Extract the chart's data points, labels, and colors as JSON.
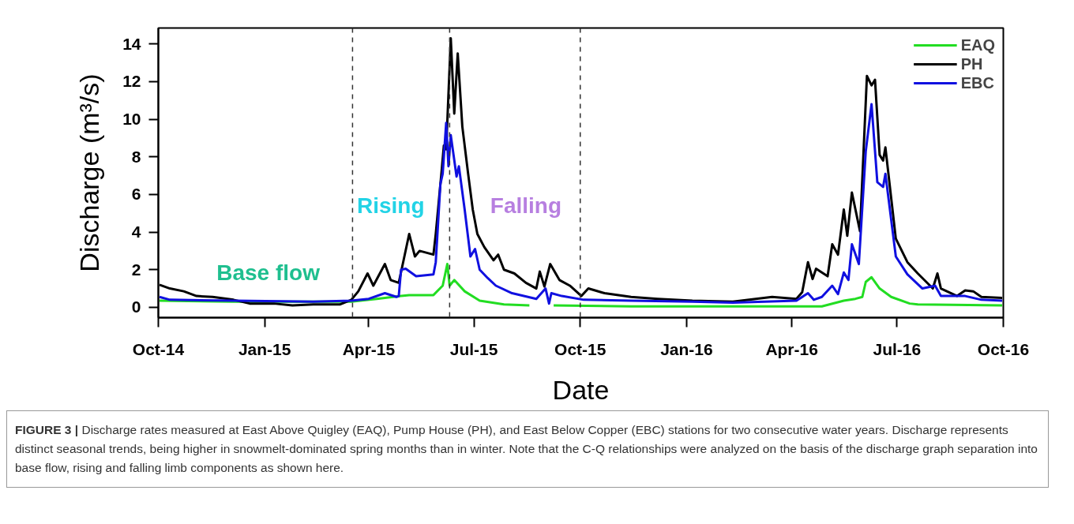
{
  "chart_data": {
    "type": "line",
    "xlabel": "Date",
    "ylabel": "Discharge (m³/s)",
    "xlim": [
      "2014-10-01",
      "2016-10-01"
    ],
    "xticks": [
      {
        "value": "2014-10-01",
        "label": "Oct-14"
      },
      {
        "value": "2015-01-01",
        "label": "Jan-15"
      },
      {
        "value": "2015-04-01",
        "label": "Apr-15"
      },
      {
        "value": "2015-07-01",
        "label": "Jul-15"
      },
      {
        "value": "2015-10-01",
        "label": "Oct-15"
      },
      {
        "value": "2016-01-01",
        "label": "Jan-16"
      },
      {
        "value": "2016-04-01",
        "label": "Apr-16"
      },
      {
        "value": "2016-07-01",
        "label": "Jul-16"
      },
      {
        "value": "2016-10-01",
        "label": "Oct-16"
      }
    ],
    "ylim": [
      -0.55,
      14.85
    ],
    "yticks": [
      0,
      2,
      4,
      6,
      8,
      10,
      12,
      14
    ],
    "grid": false,
    "legend": "top right",
    "marker": "none",
    "line_style": "solid",
    "series": [
      {
        "name": "EAQ",
        "color": "#22dd22",
        "x": [
          "2014-10-02",
          "2014-12-05",
          "2015-03-17",
          "2015-04-08",
          "2015-05-06",
          "2015-05-27",
          "2015-06-04",
          "2015-06-08",
          "2015-06-10",
          "2015-06-14",
          "2015-06-23",
          "2015-07-06",
          "2015-07-27",
          "2015-08-18",
          "2015-08-30",
          "2015-09-08",
          "2015-11-14",
          "2016-01-27",
          "2016-04-01",
          "2016-04-27",
          "2016-05-16",
          "2016-05-26",
          "2016-06-01",
          "2016-06-04",
          "2016-06-09",
          "2016-06-16",
          "2016-06-26",
          "2016-07-12",
          "2016-07-19",
          "2016-09-30"
        ],
        "values": [
          0.35,
          0.3,
          0.3,
          0.45,
          0.65,
          0.65,
          1.15,
          2.3,
          1.15,
          1.45,
          0.85,
          0.35,
          0.15,
          0.1,
          null,
          0.1,
          0.05,
          0.05,
          0.05,
          0.05,
          0.35,
          0.45,
          0.55,
          1.35,
          1.6,
          1.0,
          0.55,
          0.2,
          0.15,
          0.1
        ]
      },
      {
        "name": "PH",
        "color": "#000000",
        "x": [
          "2014-10-02",
          "2014-10-11",
          "2014-10-23",
          "2014-11-03",
          "2014-11-17",
          "2014-12-05",
          "2014-12-19",
          "2015-01-09",
          "2015-01-25",
          "2015-02-12",
          "2015-03-07",
          "2015-03-17",
          "2015-03-23",
          "2015-03-31",
          "2015-04-05",
          "2015-04-15",
          "2015-04-20",
          "2015-04-27",
          "2015-05-06",
          "2015-05-11",
          "2015-05-15",
          "2015-05-27",
          "2015-05-29",
          "2015-06-03",
          "2015-06-05",
          "2015-06-07",
          "2015-06-11",
          "2015-06-14",
          "2015-06-17",
          "2015-06-21",
          "2015-06-26",
          "2015-06-30",
          "2015-07-04",
          "2015-07-10",
          "2015-07-18",
          "2015-07-22",
          "2015-07-27",
          "2015-08-05",
          "2015-08-15",
          "2015-08-24",
          "2015-08-27",
          "2015-08-31",
          "2015-09-05",
          "2015-09-13",
          "2015-09-22",
          "2015-10-02",
          "2015-10-08",
          "2015-10-22",
          "2015-11-14",
          "2015-12-07",
          "2016-01-06",
          "2016-02-10",
          "2016-03-15",
          "2016-04-05",
          "2016-04-10",
          "2016-04-15",
          "2016-04-19",
          "2016-04-22",
          "2016-05-02",
          "2016-05-06",
          "2016-05-11",
          "2016-05-16",
          "2016-05-19",
          "2016-05-23",
          "2016-05-30",
          "2016-06-05",
          "2016-06-09",
          "2016-06-12",
          "2016-06-16",
          "2016-06-19",
          "2016-06-21",
          "2016-06-30",
          "2016-07-10",
          "2016-07-19",
          "2016-08-01",
          "2016-08-05",
          "2016-08-08",
          "2016-08-22",
          "2016-08-29",
          "2016-09-05",
          "2016-09-12",
          "2016-09-30"
        ],
        "values": [
          1.2,
          1.0,
          0.85,
          0.6,
          0.55,
          0.4,
          0.2,
          0.2,
          0.1,
          0.15,
          0.15,
          0.4,
          0.85,
          1.8,
          1.15,
          2.3,
          1.45,
          1.3,
          3.9,
          2.7,
          3.0,
          2.8,
          3.9,
          7.2,
          8.6,
          8.4,
          14.3,
          10.3,
          13.5,
          9.6,
          7.1,
          5.2,
          3.9,
          3.2,
          2.5,
          2.8,
          2.0,
          1.8,
          1.3,
          1.0,
          1.9,
          1.1,
          2.3,
          1.45,
          1.15,
          0.6,
          1.0,
          0.75,
          0.55,
          0.45,
          0.35,
          0.3,
          0.55,
          0.45,
          0.8,
          2.4,
          1.5,
          2.05,
          1.65,
          3.35,
          2.8,
          5.2,
          3.8,
          6.1,
          4.05,
          12.3,
          11.8,
          12.1,
          8.1,
          7.8,
          8.5,
          3.65,
          2.4,
          1.8,
          1.0,
          1.8,
          1.0,
          0.6,
          0.9,
          0.85,
          0.55,
          0.5
        ]
      },
      {
        "name": "EBC",
        "color": "#1010e0",
        "x": [
          "2014-10-02",
          "2014-10-11",
          "2014-12-05",
          "2015-02-12",
          "2015-03-17",
          "2015-04-01",
          "2015-04-15",
          "2015-04-25",
          "2015-04-27",
          "2015-04-29",
          "2015-05-03",
          "2015-05-12",
          "2015-05-27",
          "2015-05-29",
          "2015-06-02",
          "2015-06-04",
          "2015-06-07",
          "2015-06-09",
          "2015-06-11",
          "2015-06-16",
          "2015-06-18",
          "2015-06-23",
          "2015-06-28",
          "2015-07-02",
          "2015-07-06",
          "2015-07-13",
          "2015-07-20",
          "2015-08-03",
          "2015-08-24",
          "2015-09-01",
          "2015-09-04",
          "2015-09-06",
          "2015-09-15",
          "2015-10-04",
          "2015-11-14",
          "2016-01-06",
          "2016-02-10",
          "2016-04-05",
          "2016-04-15",
          "2016-04-20",
          "2016-04-27",
          "2016-05-06",
          "2016-05-11",
          "2016-05-16",
          "2016-05-20",
          "2016-05-23",
          "2016-05-29",
          "2016-06-04",
          "2016-06-09",
          "2016-06-14",
          "2016-06-19",
          "2016-06-21",
          "2016-06-30",
          "2016-07-10",
          "2016-07-23",
          "2016-08-03",
          "2016-08-08",
          "2016-08-29",
          "2016-09-12",
          "2016-09-30"
        ],
        "values": [
          0.55,
          0.4,
          0.35,
          0.3,
          0.35,
          0.45,
          0.75,
          0.55,
          0.6,
          2.0,
          2.05,
          1.65,
          1.75,
          2.4,
          6.55,
          7.1,
          9.8,
          7.5,
          9.15,
          6.95,
          7.5,
          5.2,
          2.7,
          3.1,
          2.0,
          1.55,
          1.15,
          0.75,
          0.45,
          1.0,
          0.2,
          0.75,
          0.6,
          0.4,
          0.35,
          0.3,
          0.25,
          0.35,
          0.75,
          0.4,
          0.55,
          1.15,
          0.7,
          1.85,
          1.45,
          3.35,
          2.3,
          8.3,
          10.8,
          6.65,
          6.4,
          7.1,
          2.7,
          1.75,
          1.0,
          1.15,
          0.6,
          0.6,
          0.4,
          0.35
        ]
      }
    ],
    "ref_lines": [
      {
        "axis": "x",
        "value": "2015-03-18",
        "color": "#333333",
        "line_style": "dashed"
      },
      {
        "axis": "x",
        "value": "2015-06-10",
        "color": "#333333",
        "line_style": "dashed"
      },
      {
        "axis": "x",
        "value": "2015-10-01",
        "color": "#333333",
        "line_style": "dashed"
      }
    ],
    "annotations": [
      "Base flow",
      "Rising",
      "Falling",
      "FIGURE 3 | Discharge rates measured at East Above Quigley (EAQ), Pump House (PH), and East Below Copper (EBC) stations for two consecutive water years. Discharge represents distinct seasonal trends, being higher in snowmelt-dominated spring months than in winter. Note that the C-Q relationships were analyzed on the basis of the discharge graph separation into base flow, rising and falling limb components as shown here."
    ]
  }
}
